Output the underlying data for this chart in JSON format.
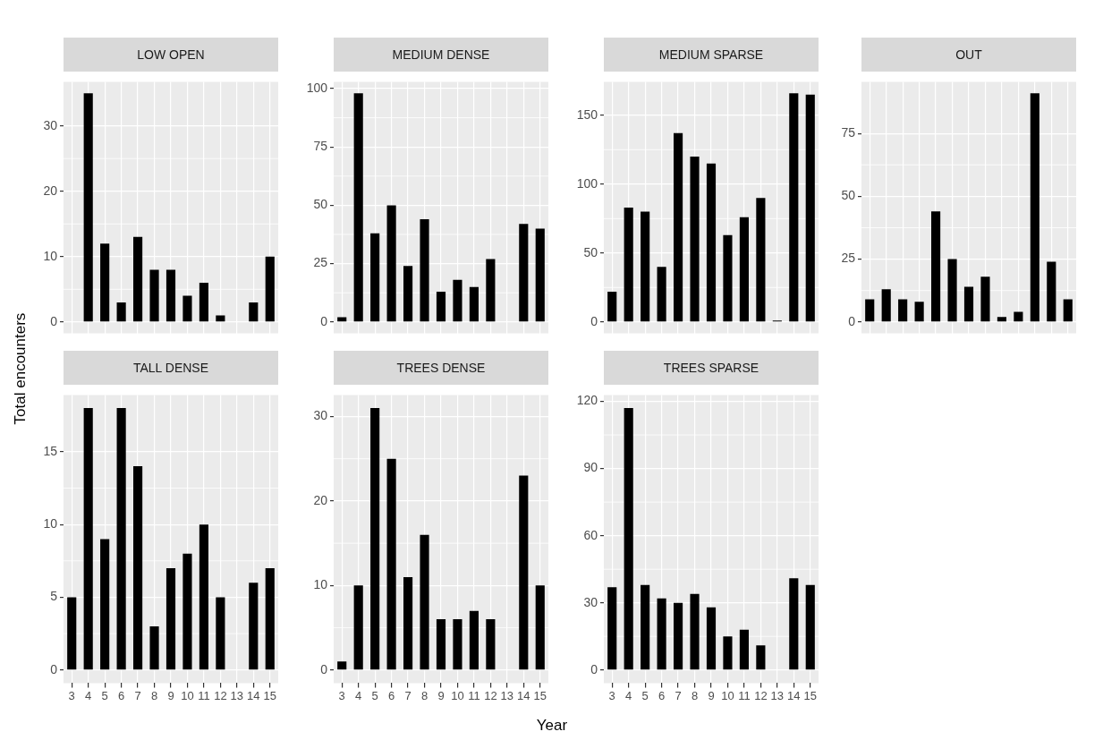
{
  "chart_data": [
    {
      "type": "bar",
      "title": "LOW OPEN",
      "ylabel": "Total encounters",
      "categories": [
        "3",
        "4",
        "5",
        "6",
        "7",
        "8",
        "9",
        "10",
        "11",
        "12",
        "13",
        "14",
        "15"
      ],
      "values": [
        null,
        35,
        12,
        3,
        13,
        8,
        8,
        4,
        6,
        1,
        null,
        3,
        10
      ],
      "color": "#000000",
      "ylim": [
        -1.75,
        36.75
      ],
      "yticks": [
        0,
        10,
        20,
        30
      ],
      "grid": true,
      "tick_labels": "y"
    },
    {
      "type": "bar",
      "title": "MEDIUM DENSE",
      "categories": [
        "3",
        "4",
        "5",
        "6",
        "7",
        "8",
        "9",
        "10",
        "11",
        "12",
        "13",
        "14",
        "15"
      ],
      "values": [
        2,
        98,
        38,
        50,
        24,
        44,
        13,
        18,
        15,
        27,
        null,
        42,
        40
      ],
      "color": "#000000",
      "ylim": [
        -4.9,
        102.9
      ],
      "yticks": [
        0,
        25,
        50,
        75,
        100
      ],
      "grid": true,
      "tick_labels": "y"
    },
    {
      "type": "bar",
      "title": "MEDIUM SPARSE",
      "categories": [
        "3",
        "4",
        "5",
        "6",
        "7",
        "8",
        "9",
        "10",
        "11",
        "12",
        "13",
        "14",
        "15"
      ],
      "values": [
        22,
        83,
        80,
        40,
        137,
        120,
        115,
        63,
        76,
        90,
        1,
        166,
        165
      ],
      "color": "#000000",
      "ylim": [
        -8.3,
        174.3
      ],
      "yticks": [
        0,
        50,
        100,
        150
      ],
      "grid": true,
      "tick_labels": "y"
    },
    {
      "type": "bar",
      "title": "OUT",
      "categories": [
        null,
        null,
        null,
        null,
        null,
        null,
        null,
        null,
        null,
        null,
        null,
        null,
        null
      ],
      "values": [
        9,
        13,
        9,
        8,
        44,
        25,
        14,
        18,
        2,
        4,
        91,
        24,
        9
      ],
      "color": "#000000",
      "ylim": [
        -4.55,
        95.55
      ],
      "yticks": [
        0,
        25,
        50,
        75
      ],
      "grid": true,
      "tick_labels": "y"
    },
    {
      "type": "bar",
      "title": "TALL DENSE",
      "categories": [
        "3",
        "4",
        "5",
        "6",
        "7",
        "8",
        "9",
        "10",
        "11",
        "12",
        "13",
        "14",
        "15"
      ],
      "values": [
        5,
        18,
        9,
        18,
        14,
        3,
        7,
        8,
        10,
        5,
        null,
        6,
        7
      ],
      "color": "#000000",
      "ylim": [
        -0.9,
        18.9
      ],
      "yticks": [
        0,
        5,
        10,
        15
      ],
      "grid": true
    },
    {
      "type": "bar",
      "title": "TREES DENSE",
      "xlabel": "Year",
      "categories": [
        "3",
        "4",
        "5",
        "6",
        "7",
        "8",
        "9",
        "10",
        "11",
        "12",
        "13",
        "14",
        "15"
      ],
      "values": [
        1,
        10,
        31,
        25,
        11,
        16,
        6,
        6,
        7,
        6,
        null,
        23,
        10
      ],
      "color": "#000000",
      "ylim": [
        -1.55,
        32.55
      ],
      "yticks": [
        0,
        10,
        20,
        30
      ],
      "grid": true
    },
    {
      "type": "bar",
      "title": "TREES SPARSE",
      "categories": [
        "3",
        "4",
        "5",
        "6",
        "7",
        "8",
        "9",
        "10",
        "11",
        "12",
        "13",
        "14",
        "15"
      ],
      "values": [
        37,
        117,
        38,
        32,
        30,
        34,
        28,
        15,
        18,
        11,
        null,
        41,
        38
      ],
      "color": "#000000",
      "ylim": [
        -5.85,
        122.85
      ],
      "yticks": [
        0,
        30,
        60,
        90,
        120
      ],
      "grid": true
    }
  ]
}
